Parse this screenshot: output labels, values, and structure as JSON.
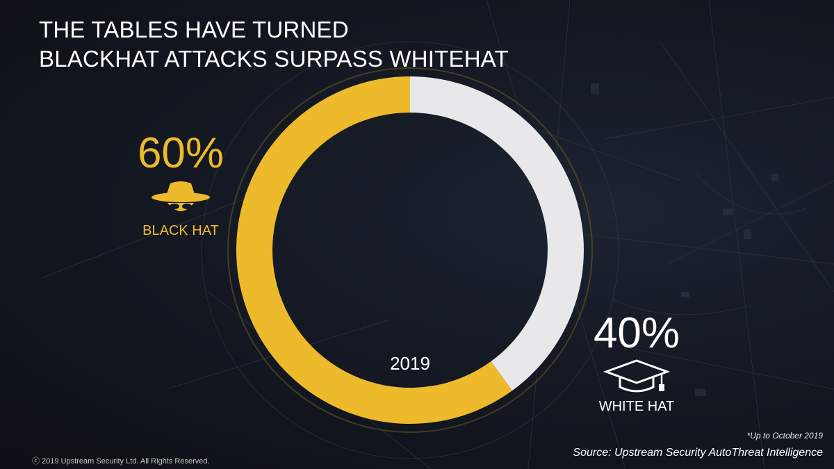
{
  "title": {
    "line1": "THE TABLES HAVE TURNED",
    "line2": "BLACKHAT ATTACKS SURPASS WHITEHAT"
  },
  "chart_data": {
    "type": "pie",
    "style": "donut",
    "center_label": "2019",
    "series": [
      {
        "name": "BLACK HAT",
        "value": 60,
        "value_label": "60%",
        "color": "#ecba2a",
        "icon": "spy-hat-icon"
      },
      {
        "name": "WHITE HAT",
        "value": 40,
        "value_label": "40%",
        "color": "#e8e8ea",
        "icon": "graduation-cap-icon"
      }
    ]
  },
  "footnote": "*Up to October 2019",
  "source": "Source: Upstream Security AutoThreat Intelligence",
  "copyright": "ⓒ 2019 Upstream Security Ltd. All Rights Reserved.",
  "colors": {
    "accent": "#ecba2a",
    "background": "#141923",
    "white_segment": "#e8e8ea"
  }
}
